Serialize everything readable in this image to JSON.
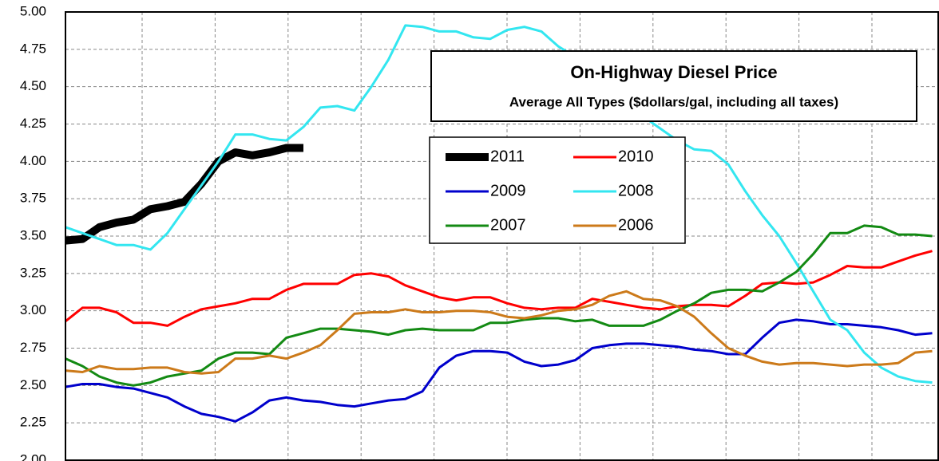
{
  "chart_data": {
    "type": "line",
    "title": "On-Highway Diesel Price",
    "subtitle": "Average All Types ($dollars/gal, including all taxes)",
    "x": [
      1,
      2,
      3,
      4,
      5,
      6,
      7,
      8,
      9,
      10,
      11,
      12,
      13,
      14,
      15,
      16,
      17,
      18,
      19,
      20,
      21,
      22,
      23,
      24,
      25,
      26,
      27,
      28,
      29,
      30,
      31,
      32,
      33,
      34,
      35,
      36,
      37,
      38,
      39,
      40,
      41,
      42,
      43,
      44,
      45,
      46,
      47,
      48,
      49,
      50,
      51,
      52
    ],
    "xlim": [
      1,
      52.4
    ],
    "ylim": [
      2,
      5
    ],
    "yticks": [
      {
        "value": 2,
        "label": "2.00"
      },
      {
        "value": 2.25,
        "label": "2.25"
      },
      {
        "value": 2.5,
        "label": "2.50"
      },
      {
        "value": 2.75,
        "label": "2.75"
      },
      {
        "value": 3,
        "label": "3.00"
      },
      {
        "value": 3.25,
        "label": "3.25"
      },
      {
        "value": 3.5,
        "label": "3.50"
      },
      {
        "value": 3.75,
        "label": "3.75"
      },
      {
        "value": 4,
        "label": "4.00"
      },
      {
        "value": 4.25,
        "label": "4.25"
      },
      {
        "value": 4.5,
        "label": "4.50"
      },
      {
        "value": 4.75,
        "label": "4.75"
      },
      {
        "value": 5,
        "label": "5.00"
      }
    ],
    "grid": true,
    "series": [
      {
        "name": "2011",
        "color": "#000000",
        "values": [
          3.47,
          3.48,
          3.56,
          3.59,
          3.61,
          3.68,
          3.7,
          3.73,
          3.85,
          4.0,
          4.06,
          4.04,
          4.06,
          4.09,
          4.09,
          null,
          null,
          null,
          null,
          null,
          null,
          null,
          null,
          null,
          null,
          null,
          null,
          null,
          null,
          null,
          null,
          null,
          null,
          null,
          null,
          null,
          null,
          null,
          null,
          null,
          null,
          null,
          null,
          null,
          null,
          null,
          null,
          null,
          null,
          null,
          null,
          null
        ]
      },
      {
        "name": "2010",
        "color": "#ff0000",
        "values": [
          2.93,
          3.02,
          3.02,
          2.99,
          2.92,
          2.92,
          2.9,
          2.96,
          3.01,
          3.03,
          3.05,
          3.08,
          3.08,
          3.14,
          3.18,
          3.18,
          3.18,
          3.24,
          3.25,
          3.23,
          3.17,
          3.13,
          3.09,
          3.07,
          3.09,
          3.09,
          3.05,
          3.02,
          3.01,
          3.02,
          3.02,
          3.08,
          3.06,
          3.04,
          3.02,
          3.01,
          3.03,
          3.04,
          3.04,
          3.03,
          3.1,
          3.18,
          3.19,
          3.18,
          3.19,
          3.24,
          3.3,
          3.29,
          3.29,
          3.33,
          3.37,
          3.4
        ]
      },
      {
        "name": "2009",
        "color": "#0000cc",
        "values": [
          2.49,
          2.51,
          2.51,
          2.49,
          2.48,
          2.45,
          2.42,
          2.36,
          2.31,
          2.29,
          2.26,
          2.32,
          2.4,
          2.42,
          2.4,
          2.39,
          2.37,
          2.36,
          2.38,
          2.4,
          2.41,
          2.46,
          2.62,
          2.7,
          2.73,
          2.73,
          2.72,
          2.66,
          2.63,
          2.64,
          2.67,
          2.75,
          2.77,
          2.78,
          2.78,
          2.77,
          2.76,
          2.74,
          2.73,
          2.71,
          2.71,
          2.82,
          2.92,
          2.94,
          2.93,
          2.91,
          2.91,
          2.9,
          2.89,
          2.87,
          2.84,
          2.85
        ]
      },
      {
        "name": "2008",
        "color": "#33e6f0",
        "values": [
          3.56,
          3.52,
          3.48,
          3.44,
          3.44,
          3.41,
          3.52,
          3.68,
          3.84,
          4.0,
          4.18,
          4.18,
          4.15,
          4.14,
          4.23,
          4.36,
          4.37,
          4.34,
          4.5,
          4.68,
          4.91,
          4.9,
          4.87,
          4.87,
          4.83,
          4.82,
          4.88,
          4.9,
          4.87,
          4.77,
          4.7,
          4.6,
          4.5,
          4.38,
          4.3,
          4.22,
          4.14,
          4.08,
          4.07,
          3.98,
          3.8,
          3.64,
          3.5,
          3.32,
          3.13,
          2.94,
          2.87,
          2.72,
          2.62,
          2.56,
          2.53,
          2.52
        ]
      },
      {
        "name": "2007",
        "color": "#138a13",
        "values": [
          2.68,
          2.63,
          2.56,
          2.52,
          2.5,
          2.52,
          2.56,
          2.58,
          2.6,
          2.68,
          2.72,
          2.72,
          2.71,
          2.82,
          2.85,
          2.88,
          2.88,
          2.87,
          2.86,
          2.84,
          2.87,
          2.88,
          2.87,
          2.87,
          2.87,
          2.92,
          2.92,
          2.94,
          2.95,
          2.95,
          2.93,
          2.94,
          2.9,
          2.9,
          2.9,
          2.94,
          3.0,
          3.05,
          3.12,
          3.14,
          3.14,
          3.13,
          3.19,
          3.26,
          3.38,
          3.52,
          3.52,
          3.57,
          3.56,
          3.51,
          3.51,
          3.5
        ]
      },
      {
        "name": "2006",
        "color": "#cc7a1a",
        "values": [
          2.6,
          2.59,
          2.63,
          2.61,
          2.61,
          2.62,
          2.62,
          2.59,
          2.58,
          2.59,
          2.68,
          2.68,
          2.7,
          2.68,
          2.72,
          2.77,
          2.87,
          2.98,
          2.99,
          2.99,
          3.01,
          2.99,
          2.99,
          3.0,
          3.0,
          2.99,
          2.96,
          2.95,
          2.97,
          3.0,
          3.01,
          3.04,
          3.1,
          3.13,
          3.08,
          3.07,
          3.03,
          2.96,
          2.85,
          2.75,
          2.7,
          2.66,
          2.64,
          2.65,
          2.65,
          2.64,
          2.63,
          2.64,
          2.64,
          2.65,
          2.72,
          2.73
        ]
      }
    ]
  }
}
